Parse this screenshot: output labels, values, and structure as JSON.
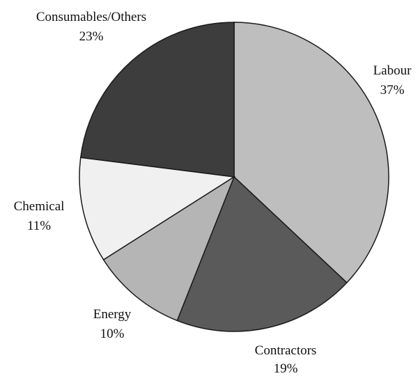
{
  "chart_data": {
    "type": "pie",
    "start_angle_deg": 0,
    "direction": "clockwise",
    "slices": [
      {
        "label": "Labour",
        "pct_label": "37%",
        "value": 37,
        "color": "#bebebe"
      },
      {
        "label": "Contractors",
        "pct_label": "19%",
        "value": 19,
        "color": "#5a5a5a"
      },
      {
        "label": "Energy",
        "pct_label": "10%",
        "value": 10,
        "color": "#b5b5b5"
      },
      {
        "label": "Chemical",
        "pct_label": "11%",
        "value": 11,
        "color": "#f0f0f0"
      },
      {
        "label": "Consumables/Others",
        "pct_label": "23%",
        "value": 23,
        "color": "#3d3d3d"
      }
    ]
  }
}
